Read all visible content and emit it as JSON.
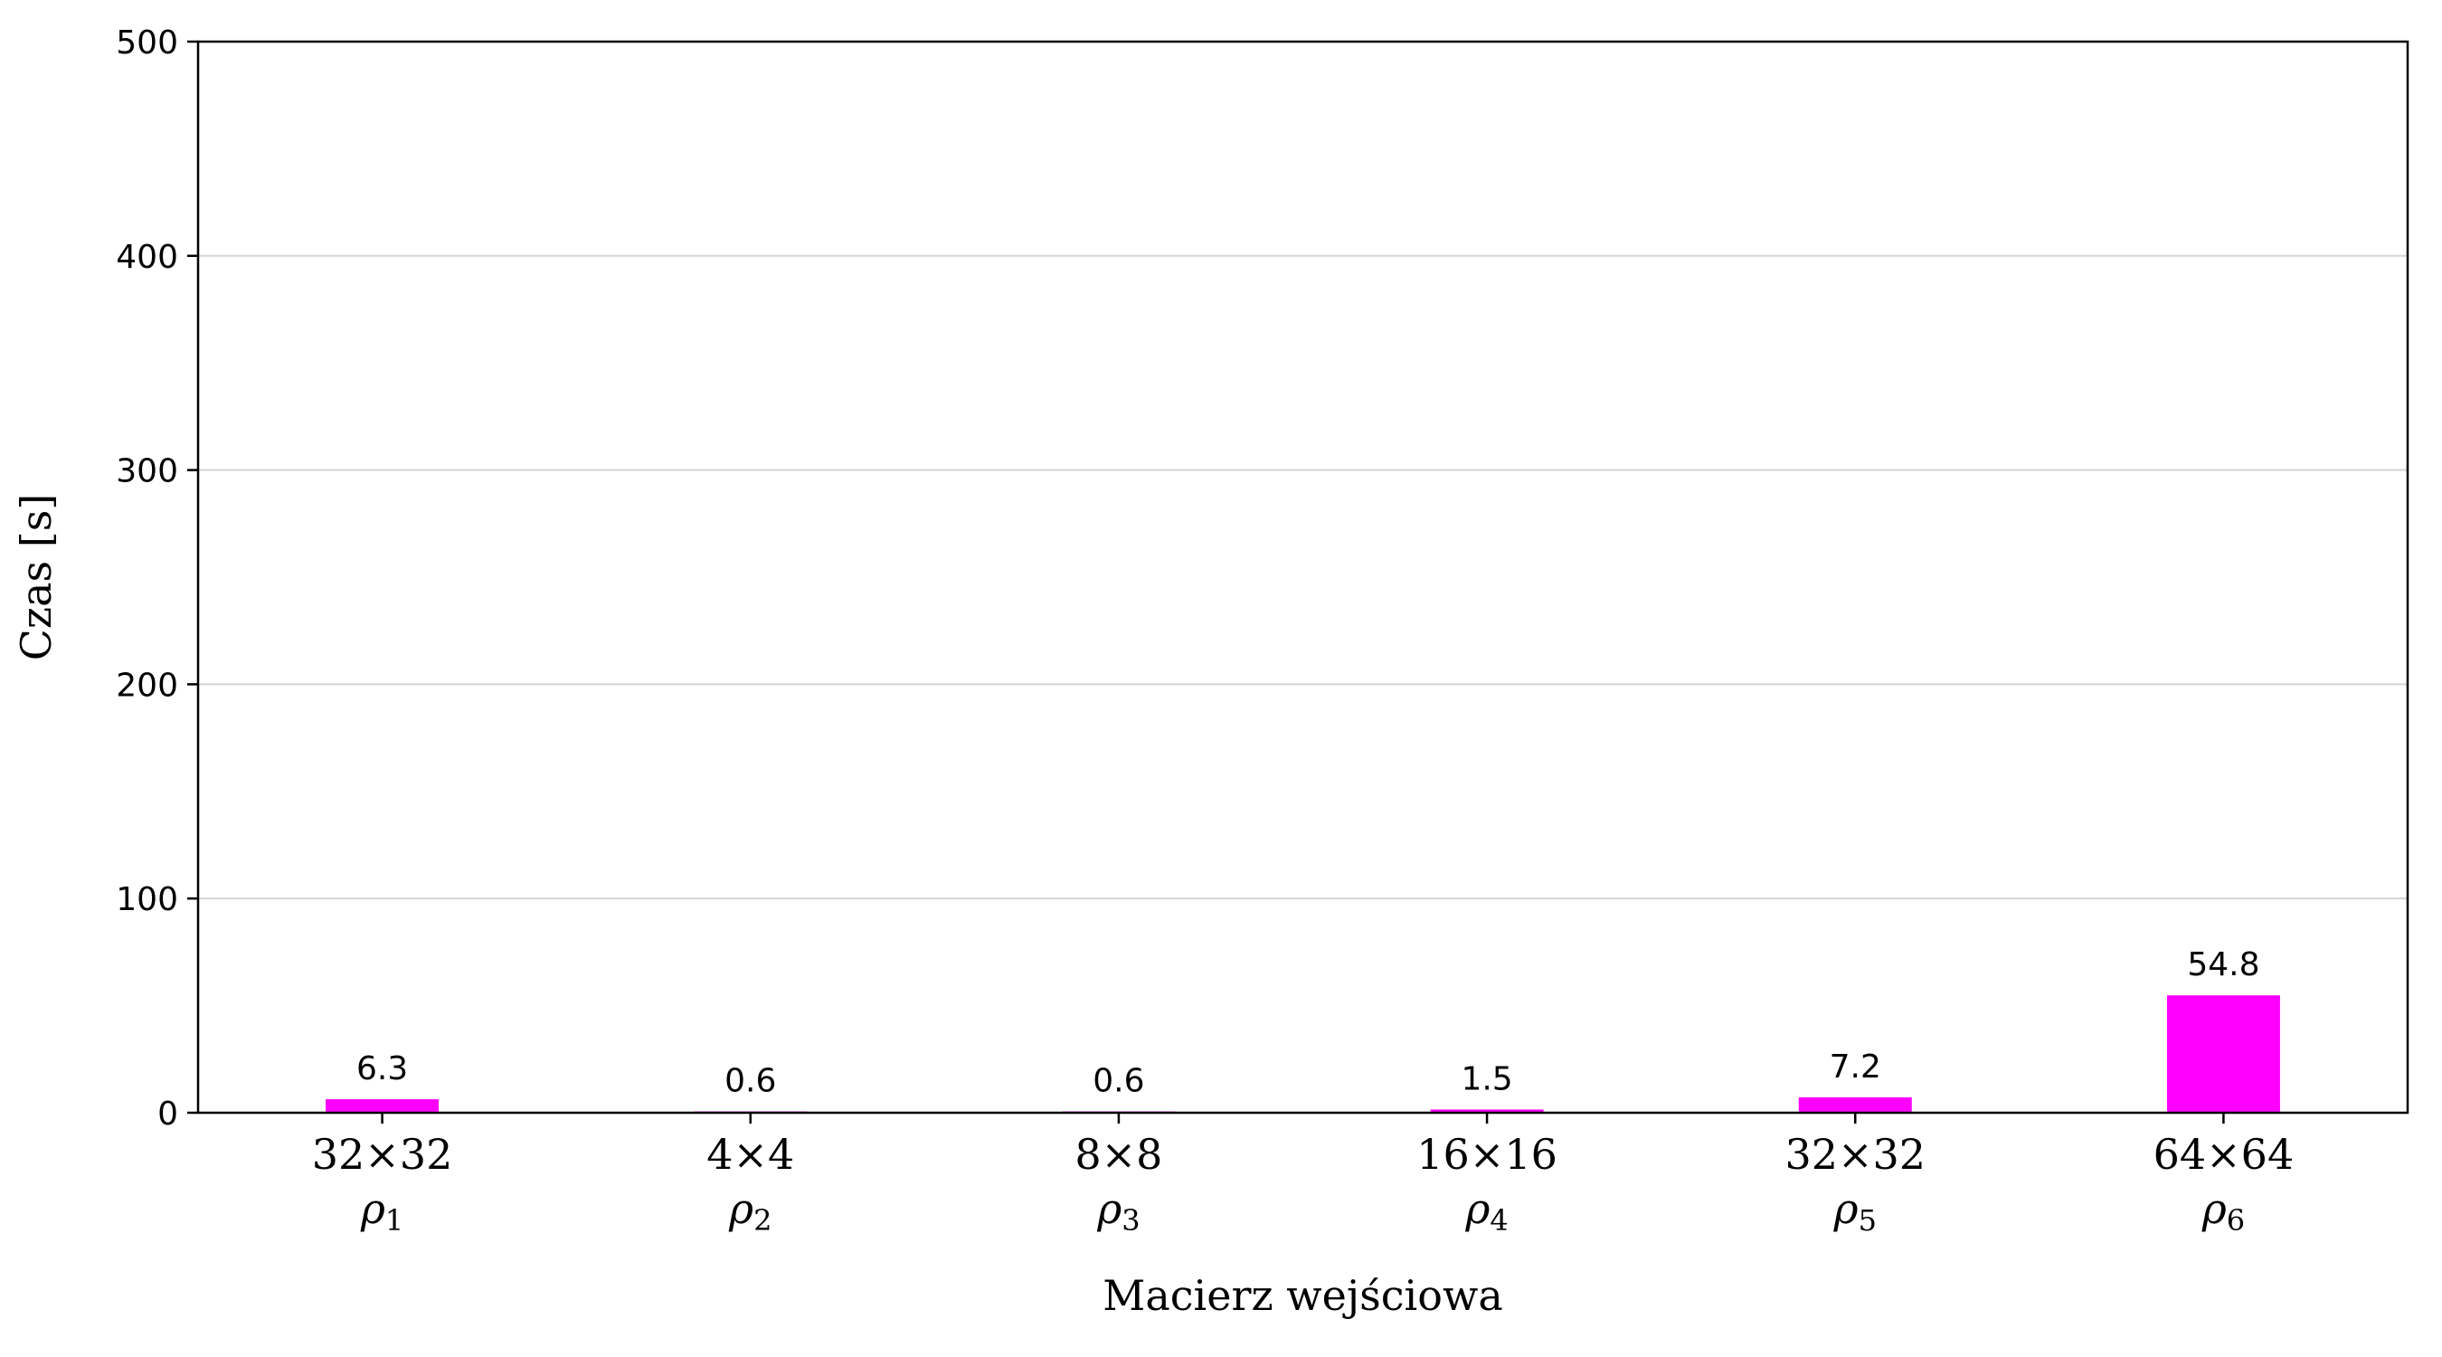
{
  "chart_data": {
    "type": "bar",
    "categories": [
      {
        "label": "32×32",
        "sub": "ρ",
        "sub_index": "1"
      },
      {
        "label": "4×4",
        "sub": "ρ",
        "sub_index": "2"
      },
      {
        "label": "8×8",
        "sub": "ρ",
        "sub_index": "3"
      },
      {
        "label": "16×16",
        "sub": "ρ",
        "sub_index": "4"
      },
      {
        "label": "32×32",
        "sub": "ρ",
        "sub_index": "5"
      },
      {
        "label": "64×64",
        "sub": "ρ",
        "sub_index": "6"
      }
    ],
    "values": [
      6.3,
      0.6,
      0.6,
      1.5,
      7.2,
      54.8
    ],
    "value_labels": [
      "6.3",
      "0.6",
      "0.6",
      "1.5",
      "7.2",
      "54.8"
    ],
    "title": "",
    "xlabel": "Macierz wejściowa",
    "ylabel": "Czas [s]",
    "ylim": [
      0,
      500
    ],
    "yticks": [
      0,
      100,
      200,
      300,
      400,
      500
    ],
    "ytick_labels": [
      "0",
      "100",
      "200",
      "300",
      "400",
      "500"
    ],
    "grid": "horizontal",
    "bar_color": "#ff00ff",
    "grid_color": "#d3d3d3"
  }
}
